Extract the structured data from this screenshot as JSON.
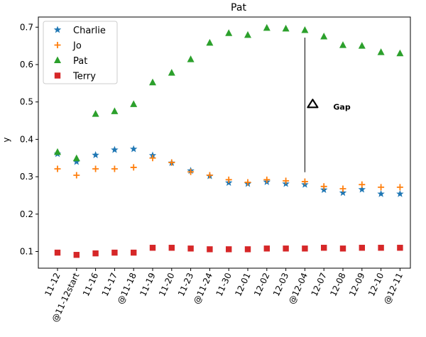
{
  "chart_data": {
    "type": "scatter",
    "title": "Pat",
    "xlabel": "",
    "ylabel": "y",
    "categories": [
      "11-12",
      "@11-12start",
      "11-16",
      "11-17",
      "@11-18",
      "11-19",
      "11-20",
      "11-23",
      "@11-24",
      "11-30",
      "12-01",
      "12-02",
      "12-03",
      "@12-04",
      "12-07",
      "12-08",
      "12-09",
      "12-10",
      "@12-11"
    ],
    "ylim": [
      0.04,
      0.73
    ],
    "yticks": [
      0.1,
      0.2,
      0.3,
      0.4,
      0.5,
      0.6,
      0.7
    ],
    "grid": false,
    "legend": "top-left",
    "series": [
      {
        "name": "Charlie",
        "marker": "star",
        "color": "#1f77b4",
        "values": [
          0.361,
          0.34,
          0.358,
          0.372,
          0.374,
          0.357,
          0.337,
          0.316,
          0.302,
          0.284,
          0.281,
          0.286,
          0.281,
          0.279,
          0.265,
          0.257,
          0.266,
          0.254,
          0.254
        ]
      },
      {
        "name": "Jo",
        "marker": "plus",
        "color": "#ff7f0e",
        "values": [
          0.321,
          0.304,
          0.321,
          0.321,
          0.325,
          0.35,
          0.338,
          0.313,
          0.304,
          0.292,
          0.285,
          0.292,
          0.289,
          0.287,
          0.274,
          0.268,
          0.279,
          0.272,
          0.272
        ]
      },
      {
        "name": "Pat",
        "marker": "triangle",
        "color": "#2ca02c",
        "values": [
          0.366,
          0.349,
          0.468,
          0.475,
          0.494,
          0.552,
          0.578,
          0.614,
          0.658,
          0.684,
          0.679,
          0.698,
          0.696,
          0.692,
          0.675,
          0.652,
          0.65,
          0.633,
          0.63
        ]
      },
      {
        "name": "Terry",
        "marker": "square",
        "color": "#d62728",
        "values": [
          0.097,
          0.091,
          0.095,
          0.097,
          0.097,
          0.11,
          0.11,
          0.108,
          0.106,
          0.106,
          0.106,
          0.108,
          0.108,
          0.108,
          0.11,
          0.108,
          0.11,
          0.11,
          0.11
        ]
      }
    ],
    "annotation": {
      "label": "Gap",
      "x_category": "@12-04",
      "y_from": 0.312,
      "y_to": 0.672,
      "marker_y": 0.495
    }
  }
}
